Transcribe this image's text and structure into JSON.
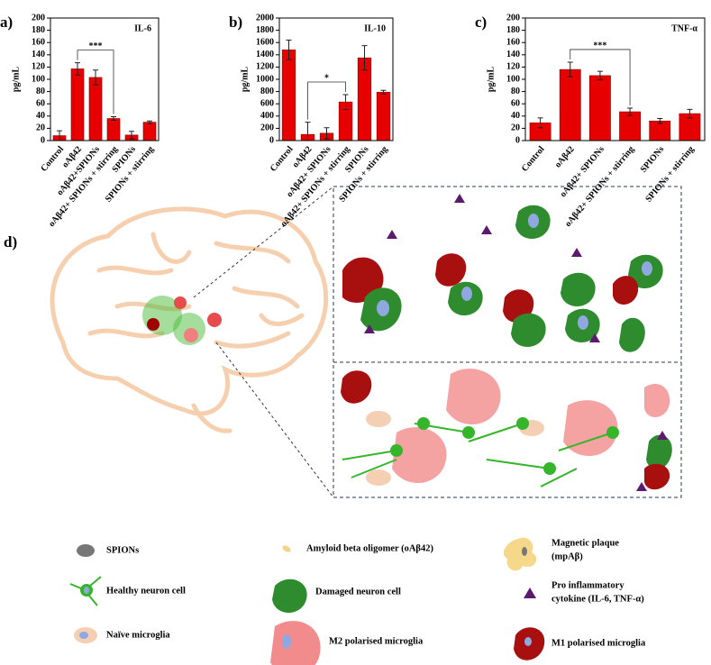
{
  "chart_data": [
    {
      "type": "bar",
      "panel": "a)",
      "title": "IL-6",
      "ylabel": "pg/mL",
      "categories": [
        "Control",
        "oAβ42",
        "oAβ42+SPIONs",
        "oAβ42+ SPIONs + stirring",
        "SPIONs",
        "SPIONs + stirring"
      ],
      "values": [
        8,
        117,
        103,
        36,
        9,
        30
      ],
      "errors": [
        8,
        10,
        12,
        3,
        6,
        2
      ],
      "color": "#e60000",
      "ylim": [
        0,
        200
      ],
      "yticks": [
        0,
        20,
        40,
        60,
        80,
        100,
        120,
        140,
        160,
        180,
        200
      ],
      "significance": {
        "label": "***",
        "pair": [
          1,
          3
        ]
      }
    },
    {
      "type": "bar",
      "panel": "b)",
      "title": "IL-10",
      "ylabel": "pg/mL",
      "categories": [
        "Control",
        "oAβ42",
        "oAβ42+ SPIONs",
        "oAβ42+ SPIONs + stirring",
        "SPIONs",
        "SPIONs + stirring"
      ],
      "values": [
        1480,
        100,
        120,
        630,
        1350,
        790
      ],
      "errors": [
        160,
        200,
        90,
        120,
        200,
        30
      ],
      "color": "#e60000",
      "ylim": [
        0,
        2000
      ],
      "yticks": [
        0,
        200,
        400,
        600,
        800,
        1000,
        1200,
        1400,
        1600,
        1800,
        2000
      ],
      "significance": {
        "label": "*",
        "pair": [
          1,
          3
        ]
      }
    },
    {
      "type": "bar",
      "panel": "c)",
      "title": "TNF-α",
      "ylabel": "pg/mL",
      "categories": [
        "Control",
        "oAβ42",
        "oAβ42+ SPIONs",
        "oAβ42+ SPIONs + stirring",
        "SPIONs",
        "SPIONs + stirring"
      ],
      "values": [
        29,
        116,
        106,
        47,
        32,
        44
      ],
      "errors": [
        8,
        12,
        7,
        6,
        4,
        7
      ],
      "color": "#e60000",
      "ylim": [
        0,
        200
      ],
      "yticks": [
        0,
        20,
        40,
        60,
        80,
        100,
        120,
        140,
        160,
        180,
        200
      ],
      "significance": {
        "label": "***",
        "pair": [
          1,
          3
        ]
      }
    }
  ],
  "diagram": {
    "panel": "d)"
  },
  "legend": {
    "spions": "SPIONs",
    "oligomer": "Amyloid beta oligomer (oAβ42)",
    "plaque": [
      "Magnetic plaque",
      "(mpAβ)"
    ],
    "healthy": "Healthy neuron cell",
    "damaged": "Damaged neuron cell",
    "cytokine": [
      "Pro inflammatory",
      "cytokine (IL-6, TNF-α)"
    ],
    "naive": "Naïve microglia",
    "m2": "M2 polarised microglia",
    "m1": "M1 polarised microglia"
  }
}
